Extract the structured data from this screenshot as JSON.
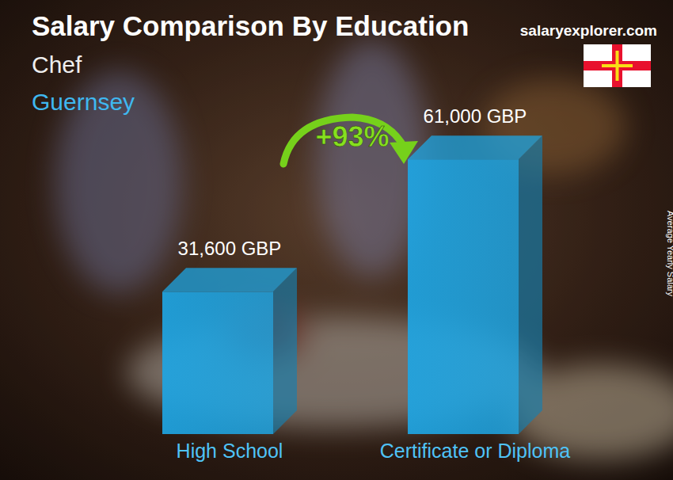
{
  "chart_data": {
    "type": "bar",
    "title": "Salary Comparison By Education",
    "subtitle": "Chef",
    "location": "Guernsey",
    "source": "salaryexplorer.com",
    "annotation": "+93%",
    "y_label": "Average Yearly Salary",
    "categories": [
      "High School",
      "Certificate or Diploma"
    ],
    "values": [
      31600,
      61000
    ],
    "value_labels": [
      "31,600 GBP",
      "61,000 GBP"
    ],
    "color": "#1ea5e3",
    "ylim": [
      0,
      70000
    ],
    "yticks": [],
    "tick_labels": false,
    "data_labels": true,
    "grid": false
  }
}
